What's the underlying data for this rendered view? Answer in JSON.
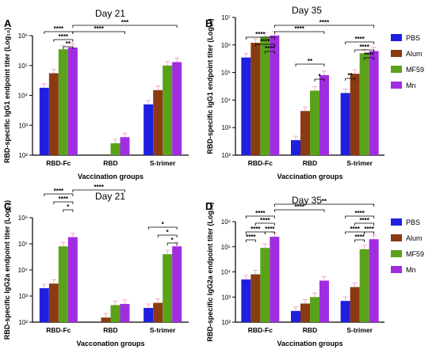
{
  "chart_data": [
    {
      "panel": "A",
      "type": "bar",
      "title": "Day 21",
      "ylabel": "RBD-specific IgG1 endpoint titer (Log₁₀)",
      "xlabel": "Vaccination groups",
      "yscale": "log",
      "ylim": [
        100,
        1000000
      ],
      "ticks": [
        "10²",
        "10³",
        "10⁴",
        "10⁵",
        "10⁶"
      ],
      "categories": [
        "RBD-Fc",
        "RBD",
        "S-trimer"
      ],
      "series": [
        {
          "name": "PBS",
          "values": [
            18000,
            null,
            5000
          ]
        },
        {
          "name": "Alum",
          "values": [
            55000,
            null,
            15000
          ]
        },
        {
          "name": "MF59",
          "values": [
            350000,
            250,
            100000
          ]
        },
        {
          "name": "Mn",
          "values": [
            400000,
            400,
            130000
          ]
        }
      ],
      "significance": [
        {
          "groups": [
            "RBD-Fc PBS",
            "RBD-Fc Mn"
          ],
          "label": "****"
        },
        {
          "groups": [
            "RBD-Fc Alum",
            "RBD-Fc Mn"
          ],
          "label": "****"
        },
        {
          "groups": [
            "RBD-Fc MF59",
            "RBD-Fc Mn"
          ],
          "label": "**"
        },
        {
          "groups": [
            "RBD-Fc Mn",
            "RBD Mn"
          ],
          "label": "****"
        },
        {
          "groups": [
            "RBD-Fc Mn",
            "S-trimer Mn"
          ],
          "label": "***"
        }
      ]
    },
    {
      "panel": "B",
      "type": "bar",
      "title": "Day 35",
      "ylabel": "RBD-specific IgG1 endpoint titer (Log₁₀)",
      "xlabel": "Vaccination groups",
      "yscale": "log",
      "ylim": [
        100,
        10000000
      ],
      "ticks": [
        "10²",
        "10³",
        "10⁴",
        "10⁵",
        "10⁶",
        "10⁷"
      ],
      "categories": [
        "RBD-Fc",
        "RBD",
        "S-trimer"
      ],
      "series": [
        {
          "name": "PBS",
          "values": [
            350000,
            350,
            18000
          ]
        },
        {
          "name": "Alum",
          "values": [
            1200000,
            4000,
            90000
          ]
        },
        {
          "name": "MF59",
          "values": [
            2000000,
            22000,
            500000
          ]
        },
        {
          "name": "Mn",
          "values": [
            2200000,
            80000,
            600000
          ]
        }
      ],
      "significance": [
        {
          "groups": [
            "RBD-Fc PBS",
            "RBD-Fc Mn"
          ],
          "label": "****"
        },
        {
          "groups": [
            "RBD-Fc Alum",
            "RBD-Fc Mn"
          ],
          "label": "****"
        },
        {
          "groups": [
            "RBD-Fc MF59",
            "RBD-Fc Mn"
          ],
          "label": "****"
        },
        {
          "groups": [
            "RBD-Fc Mn",
            "RBD Mn"
          ],
          "label": "****"
        },
        {
          "groups": [
            "RBD-Fc Mn",
            "S-trimer Mn"
          ],
          "label": "****"
        },
        {
          "groups": [
            "RBD PBS",
            "RBD Mn"
          ],
          "label": "**"
        },
        {
          "groups": [
            "RBD MF59",
            "RBD Mn"
          ],
          "label": "*"
        },
        {
          "groups": [
            "S-trimer PBS",
            "S-trimer Mn"
          ],
          "label": "****"
        },
        {
          "groups": [
            "S-trimer Alum",
            "S-trimer Mn"
          ],
          "label": "****"
        },
        {
          "groups": [
            "S-trimer MF59",
            "S-trimer Mn"
          ],
          "label": "****"
        },
        {
          "groups": [
            "S-trimer PBS",
            "S-trimer Alum"
          ],
          "label": "**"
        }
      ]
    },
    {
      "panel": "C",
      "type": "bar",
      "title": "Day 21",
      "ylabel": "RBD-specific IgG2a endpoint titer (Log₁₀)",
      "xlabel": "Vacconation groups",
      "yscale": "log",
      "ylim": [
        100,
        1000000
      ],
      "ticks": [
        "10²",
        "10³",
        "10⁴",
        "10⁵",
        "10⁶"
      ],
      "categories": [
        "RBD-Fc",
        "RBD",
        "S-trimer"
      ],
      "series": [
        {
          "name": "PBS",
          "values": [
            2000,
            null,
            350
          ]
        },
        {
          "name": "Alum",
          "values": [
            3000,
            150,
            550
          ]
        },
        {
          "name": "MF59",
          "values": [
            80000,
            450,
            40000
          ]
        },
        {
          "name": "Mn",
          "values": [
            180000,
            500,
            80000
          ]
        }
      ],
      "significance": [
        {
          "groups": [
            "RBD-Fc PBS",
            "RBD-Fc Mn"
          ],
          "label": "****"
        },
        {
          "groups": [
            "RBD-Fc Alum",
            "RBD-Fc Mn"
          ],
          "label": "****"
        },
        {
          "groups": [
            "RBD-Fc MF59",
            "RBD-Fc Mn"
          ],
          "label": "*"
        },
        {
          "groups": [
            "RBD-Fc Mn",
            "RBD Mn"
          ],
          "label": "****"
        },
        {
          "groups": [
            "S-trimer PBS",
            "S-trimer Mn"
          ],
          "label": "*"
        },
        {
          "groups": [
            "S-trimer Alum",
            "S-trimer Mn"
          ],
          "label": "*"
        },
        {
          "groups": [
            "S-trimer MF59",
            "S-trimer Mn"
          ],
          "label": "*"
        }
      ]
    },
    {
      "panel": "D",
      "type": "bar",
      "title": "Day 35",
      "ylabel": "RBD-specific IgG2a endpoint titer (Log₁₀)",
      "xlabel": "Vaccination groups",
      "yscale": "log",
      "ylim": [
        100,
        1000000
      ],
      "ticks": [
        "10²",
        "10³",
        "10⁴",
        "10⁵",
        "10⁶"
      ],
      "categories": [
        "RBD-Fc",
        "RBD",
        "S-trimer"
      ],
      "series": [
        {
          "name": "PBS",
          "values": [
            5000,
            280,
            700
          ]
        },
        {
          "name": "Alum",
          "values": [
            8000,
            550,
            2500
          ]
        },
        {
          "name": "MF59",
          "values": [
            90000,
            1000,
            80000
          ]
        },
        {
          "name": "Mn",
          "values": [
            250000,
            4500,
            200000
          ]
        }
      ],
      "significance": [
        {
          "groups": [
            "RBD-Fc PBS",
            "RBD-Fc Mn"
          ],
          "label": "****"
        },
        {
          "groups": [
            "RBD-Fc Alum",
            "RBD-Fc Mn"
          ],
          "label": "****"
        },
        {
          "groups": [
            "RBD-Fc PBS",
            "RBD-Fc MF59"
          ],
          "label": "****"
        },
        {
          "groups": [
            "RBD-Fc MF59",
            "RBD-Fc Mn"
          ],
          "label": "****"
        },
        {
          "groups": [
            "RBD-Fc PBS",
            "RBD-Fc Alum"
          ],
          "label": "****"
        },
        {
          "groups": [
            "RBD-Fc Mn",
            "RBD Mn"
          ],
          "label": "****"
        },
        {
          "groups": [
            "RBD-Fc Mn",
            "S-trimer Mn"
          ],
          "label": "**"
        },
        {
          "groups": [
            "S-trimer PBS",
            "S-trimer Mn"
          ],
          "label": "****"
        },
        {
          "groups": [
            "S-trimer Alum",
            "S-trimer Mn"
          ],
          "label": "****"
        },
        {
          "groups": [
            "S-trimer PBS",
            "S-trimer MF59"
          ],
          "label": "****"
        },
        {
          "groups": [
            "S-trimer MF59",
            "S-trimer Mn"
          ],
          "label": "****"
        },
        {
          "groups": [
            "S-trimer Alum",
            "S-trimer MF59"
          ],
          "label": "****"
        }
      ]
    }
  ],
  "legend": {
    "entries": [
      "PBS",
      "Alum",
      "MF59",
      "Mn"
    ],
    "colors": [
      "#1f1fe0",
      "#8b3a12",
      "#5aa21a",
      "#a12de0"
    ],
    "placement": "right"
  },
  "sig_color": "#d11111",
  "errorbar_color": "#f2a8c8"
}
